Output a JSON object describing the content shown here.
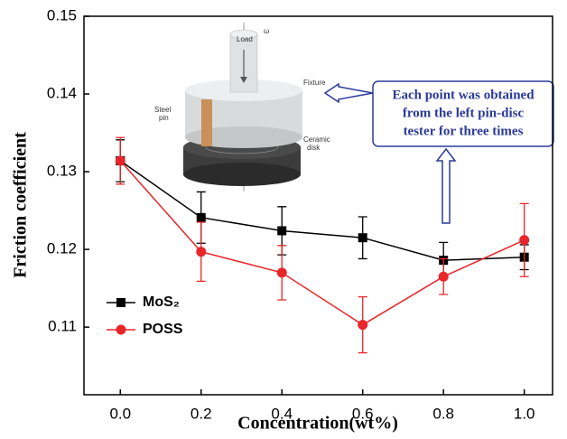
{
  "chart_data": {
    "type": "line",
    "x_label": "Concentration(wt%)",
    "y_label": "Friction coefficient",
    "x": [
      0,
      0.2,
      0.4,
      0.6,
      0.8,
      1.0
    ],
    "series": [
      {
        "name": "MoS₂",
        "color": "#000000",
        "marker": "square",
        "values": [
          0.1314,
          0.1241,
          0.1224,
          0.1215,
          0.1186,
          0.119
        ],
        "errors": [
          0.0027,
          0.0033,
          0.0031,
          0.0027,
          0.0023,
          0.0016
        ]
      },
      {
        "name": "POSS",
        "color": "#e8262a",
        "marker": "circle",
        "values": [
          0.1314,
          0.1197,
          0.117,
          0.1103,
          0.1165,
          0.1212
        ],
        "errors": [
          0.003,
          0.0038,
          0.0035,
          0.0036,
          0.0023,
          0.0047
        ]
      }
    ],
    "xlim": [
      -0.09,
      1.07
    ],
    "ylim": [
      0.1013,
      0.15
    ],
    "xticks": [
      {
        "value": 0,
        "label": "0.0"
      },
      {
        "value": 0.2,
        "label": "0.2"
      },
      {
        "value": 0.4,
        "label": "0.4"
      },
      {
        "value": 0.6,
        "label": "0.6"
      },
      {
        "value": 0.8,
        "label": "0.8"
      },
      {
        "value": 1.0,
        "label": "1.0"
      }
    ],
    "yticks": [
      0.11,
      0.12,
      0.13,
      0.14,
      0.15
    ],
    "legend": "lower left",
    "annotation": [
      "Each point was obtained",
      "from the left pin-disc",
      "tester for three times"
    ],
    "inset_labels": {
      "load": "Load",
      "omega": "ω",
      "fixture": "Fixture",
      "steel_pin": [
        "Steel",
        "pin"
      ],
      "ceramic_disk": [
        "Ceramic",
        "disk"
      ]
    }
  }
}
